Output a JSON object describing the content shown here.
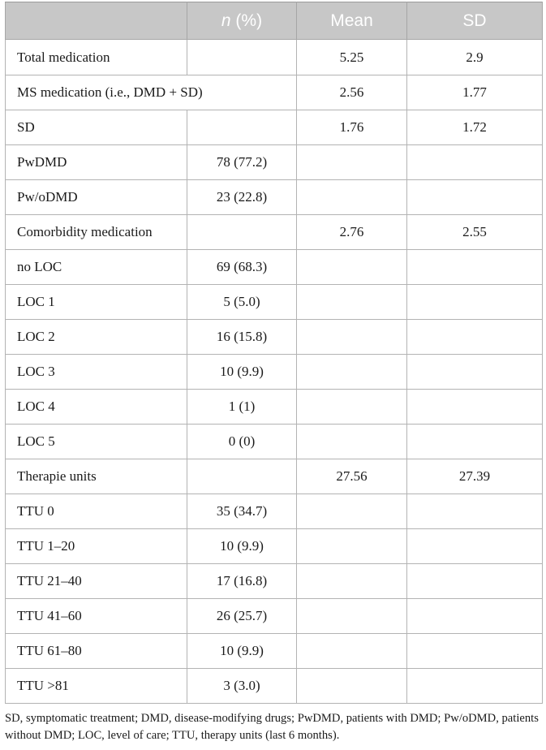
{
  "table": {
    "headers": {
      "label": "",
      "n_pct_italic": "n",
      "n_pct_rest": " (%)",
      "mean": "Mean",
      "sd": "SD"
    },
    "rows": [
      {
        "label": "Total medication",
        "n_pct": "",
        "mean": "5.25",
        "sd": "2.9"
      },
      {
        "label": "MS medication (i.e., DMD + SD)",
        "n_pct": "",
        "mean": "2.56",
        "sd": "1.77",
        "span": true
      },
      {
        "label": "SD",
        "n_pct": "",
        "mean": "1.76",
        "sd": "1.72"
      },
      {
        "label": "PwDMD",
        "n_pct": "78 (77.2)",
        "mean": "",
        "sd": ""
      },
      {
        "label": "Pw/oDMD",
        "n_pct": "23 (22.8)",
        "mean": "",
        "sd": ""
      },
      {
        "label": "Comorbidity medication",
        "n_pct": "",
        "mean": "2.76",
        "sd": "2.55"
      },
      {
        "label": "no LOC",
        "n_pct": "69 (68.3)",
        "mean": "",
        "sd": ""
      },
      {
        "label": "LOC 1",
        "n_pct": "5 (5.0)",
        "mean": "",
        "sd": ""
      },
      {
        "label": "LOC 2",
        "n_pct": "16 (15.8)",
        "mean": "",
        "sd": ""
      },
      {
        "label": "LOC 3",
        "n_pct": "10 (9.9)",
        "mean": "",
        "sd": ""
      },
      {
        "label": "LOC 4",
        "n_pct": "1 (1)",
        "mean": "",
        "sd": ""
      },
      {
        "label": "LOC 5",
        "n_pct": "0 (0)",
        "mean": "",
        "sd": ""
      },
      {
        "label": "Therapie units",
        "n_pct": "",
        "mean": "27.56",
        "sd": "27.39"
      },
      {
        "label": "TTU 0",
        "n_pct": "35 (34.7)",
        "mean": "",
        "sd": ""
      },
      {
        "label": "TTU 1–20",
        "n_pct": "10 (9.9)",
        "mean": "",
        "sd": ""
      },
      {
        "label": "TTU 21–40",
        "n_pct": "17 (16.8)",
        "mean": "",
        "sd": ""
      },
      {
        "label": "TTU 41–60",
        "n_pct": "26 (25.7)",
        "mean": "",
        "sd": ""
      },
      {
        "label": "TTU 61–80",
        "n_pct": "10 (9.9)",
        "mean": "",
        "sd": ""
      },
      {
        "label": "TTU >81",
        "n_pct": "3 (3.0)",
        "mean": "",
        "sd": ""
      }
    ]
  },
  "footnote": "SD, symptomatic treatment; DMD, disease-modifying drugs; PwDMD, patients with DMD; Pw/oDMD, patients without DMD; LOC, level of care; TTU, therapy units (last 6 months).",
  "colors": {
    "header_bg": "#c7c7c7",
    "header_text": "#ffffff",
    "border": "#b3b3b3",
    "text": "#1a1a1a"
  }
}
